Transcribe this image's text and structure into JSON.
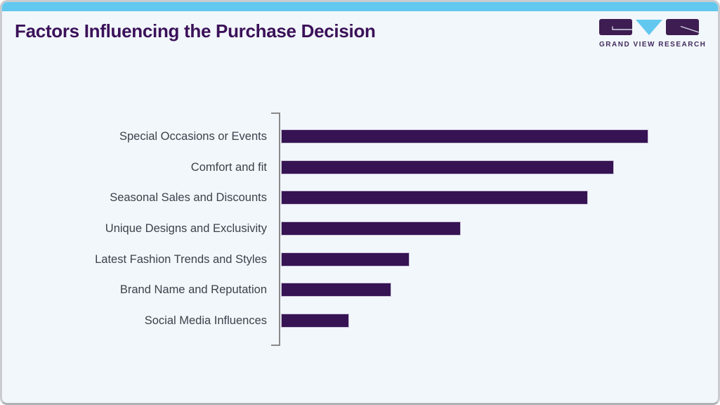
{
  "header": {
    "title": "Factors Influencing the Purchase Decision",
    "logo_text": "GRAND VIEW RESEARCH"
  },
  "colors": {
    "accent_blue": "#62C8EF",
    "title_purple": "#3B1159",
    "bar_purple": "#361353",
    "bar_edge": "#C9C3D6",
    "logo_purple": "#3E1D52",
    "card_background": "#F2F7FB",
    "card_border": "#C9CBCE",
    "axis_gray": "#8A8A8A",
    "label_gray": "#3D414B"
  },
  "chart_data": {
    "type": "bar",
    "orientation": "horizontal",
    "title": "Factors Influencing the Purchase Decision",
    "categories": [
      "Special Occasions or Events",
      "Comfort and fit",
      "Seasonal Sales and Discounts",
      "Unique Designs and Exclusivity",
      "Latest Fashion Trends and Styles",
      "Brand Name and Reputation",
      "Social Media Influences"
    ],
    "values": [
      100,
      90.5,
      83.5,
      49,
      35,
      30,
      18.5
    ],
    "values_are_relative_estimates": true,
    "xlabel": "",
    "ylabel": "",
    "xlim": [
      0,
      120
    ],
    "grid": false,
    "legend": false,
    "data_labels": false,
    "bar_color": "#361353",
    "axis_color": "#8A8A8A"
  }
}
